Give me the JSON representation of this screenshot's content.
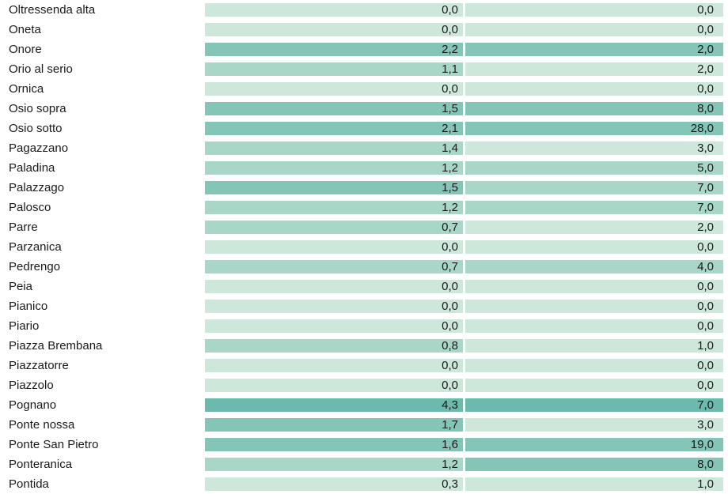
{
  "colors": {
    "light": "#cde8da",
    "mid": "#a9d7c7",
    "dark": "#84c5b7",
    "strong": "#6cb9ad"
  },
  "columns": {
    "name_width": 259,
    "a_width": 326,
    "b_width": 326
  },
  "rows": [
    {
      "name": "Oltressenda alta",
      "a": "0,0",
      "b": "0,0",
      "a_shade": "light",
      "b_shade": "light"
    },
    {
      "name": "Oneta",
      "a": "0,0",
      "b": "0,0",
      "a_shade": "light",
      "b_shade": "light"
    },
    {
      "name": "Onore",
      "a": "2,2",
      "b": "2,0",
      "a_shade": "dark",
      "b_shade": "dark"
    },
    {
      "name": "Orio al serio",
      "a": "1,1",
      "b": "2,0",
      "a_shade": "mid",
      "b_shade": "light"
    },
    {
      "name": "Ornica",
      "a": "0,0",
      "b": "0,0",
      "a_shade": "light",
      "b_shade": "light"
    },
    {
      "name": "Osio sopra",
      "a": "1,5",
      "b": "8,0",
      "a_shade": "dark",
      "b_shade": "dark"
    },
    {
      "name": "Osio sotto",
      "a": "2,1",
      "b": "28,0",
      "a_shade": "dark",
      "b_shade": "dark"
    },
    {
      "name": "Pagazzano",
      "a": "1,4",
      "b": "3,0",
      "a_shade": "mid",
      "b_shade": "light"
    },
    {
      "name": "Paladina",
      "a": "1,2",
      "b": "5,0",
      "a_shade": "mid",
      "b_shade": "mid"
    },
    {
      "name": "Palazzago",
      "a": "1,5",
      "b": "7,0",
      "a_shade": "dark",
      "b_shade": "mid"
    },
    {
      "name": "Palosco",
      "a": "1,2",
      "b": "7,0",
      "a_shade": "mid",
      "b_shade": "mid"
    },
    {
      "name": "Parre",
      "a": "0,7",
      "b": "2,0",
      "a_shade": "mid",
      "b_shade": "light"
    },
    {
      "name": "Parzanica",
      "a": "0,0",
      "b": "0,0",
      "a_shade": "light",
      "b_shade": "light"
    },
    {
      "name": "Pedrengo",
      "a": "0,7",
      "b": "4,0",
      "a_shade": "mid",
      "b_shade": "mid"
    },
    {
      "name": "Peia",
      "a": "0,0",
      "b": "0,0",
      "a_shade": "light",
      "b_shade": "light"
    },
    {
      "name": "Pianico",
      "a": "0,0",
      "b": "0,0",
      "a_shade": "light",
      "b_shade": "light"
    },
    {
      "name": "Piario",
      "a": "0,0",
      "b": "0,0",
      "a_shade": "light",
      "b_shade": "light"
    },
    {
      "name": "Piazza Brembana",
      "a": "0,8",
      "b": "1,0",
      "a_shade": "mid",
      "b_shade": "light"
    },
    {
      "name": "Piazzatorre",
      "a": "0,0",
      "b": "0,0",
      "a_shade": "light",
      "b_shade": "light"
    },
    {
      "name": "Piazzolo",
      "a": "0,0",
      "b": "0,0",
      "a_shade": "light",
      "b_shade": "light"
    },
    {
      "name": "Pognano",
      "a": "4,3",
      "b": "7,0",
      "a_shade": "strong",
      "b_shade": "strong"
    },
    {
      "name": "Ponte nossa",
      "a": "1,7",
      "b": "3,0",
      "a_shade": "dark",
      "b_shade": "light"
    },
    {
      "name": "Ponte San Pietro",
      "a": "1,6",
      "b": "19,0",
      "a_shade": "dark",
      "b_shade": "dark"
    },
    {
      "name": "Ponteranica",
      "a": "1,2",
      "b": "8,0",
      "a_shade": "mid",
      "b_shade": "dark"
    },
    {
      "name": "Pontida",
      "a": "0,3",
      "b": "1,0",
      "a_shade": "light",
      "b_shade": "light"
    }
  ]
}
